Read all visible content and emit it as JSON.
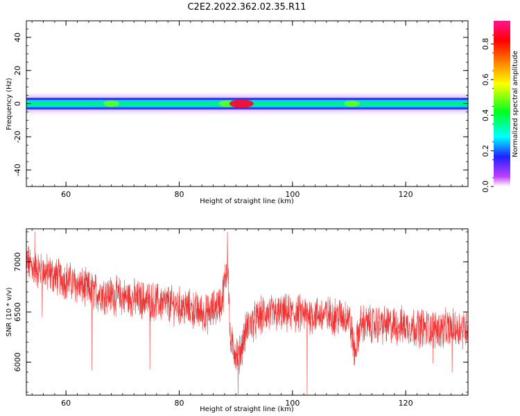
{
  "figure": {
    "title": "C2E2.2022.362.02.35.R11"
  },
  "chart_data": [
    {
      "type": "heatmap",
      "xlabel": "Height of straight line (km)",
      "ylabel": "Frequency (Hz)",
      "xlim": [
        53,
        131
      ],
      "ylim": [
        -50,
        50
      ],
      "xticks": [
        60,
        80,
        100,
        120
      ],
      "yticks": [
        -40,
        -20,
        0,
        20,
        40
      ],
      "grid": false,
      "band_center_hz": 0,
      "band_features": [
        {
          "x": 68,
          "amplitude": 0.45
        },
        {
          "x": 88.5,
          "amplitude": 0.55
        },
        {
          "x": 91,
          "amplitude": 0.95
        },
        {
          "x": 110.5,
          "amplitude": 0.45
        }
      ],
      "colorbar": {
        "label": "Normalized spectral amplitude",
        "range": [
          0,
          0.93
        ],
        "ticks": [
          0.0,
          0.2,
          0.4,
          0.6,
          0.8
        ],
        "colormap": "gist_rainbow"
      }
    },
    {
      "type": "line",
      "xlabel": "Height of straight line (km)",
      "ylabel": "SNR (10 * v/v)",
      "xlim": [
        53,
        131
      ],
      "ylim": [
        5670,
        7330
      ],
      "xticks": [
        60,
        80,
        100,
        120
      ],
      "yticks": [
        6000,
        6500,
        7000
      ],
      "grid": false,
      "color": "#f03232",
      "trend": [
        {
          "x": 53,
          "y": 7000
        },
        {
          "x": 55,
          "y": 6920
        },
        {
          "x": 60,
          "y": 6820
        },
        {
          "x": 65,
          "y": 6700
        },
        {
          "x": 70,
          "y": 6650
        },
        {
          "x": 75,
          "y": 6610
        },
        {
          "x": 80,
          "y": 6560
        },
        {
          "x": 85,
          "y": 6480
        },
        {
          "x": 87.5,
          "y": 6600
        },
        {
          "x": 88.6,
          "y": 7000
        },
        {
          "x": 89,
          "y": 6200
        },
        {
          "x": 90.5,
          "y": 6050
        },
        {
          "x": 92,
          "y": 6350
        },
        {
          "x": 95,
          "y": 6480
        },
        {
          "x": 100,
          "y": 6480
        },
        {
          "x": 105,
          "y": 6470
        },
        {
          "x": 110,
          "y": 6450
        },
        {
          "x": 111,
          "y": 6100
        },
        {
          "x": 112,
          "y": 6380
        },
        {
          "x": 120,
          "y": 6360
        },
        {
          "x": 125,
          "y": 6330
        },
        {
          "x": 131,
          "y": 6340
        }
      ],
      "spikes": [
        {
          "x": 54.5,
          "y": 7300
        },
        {
          "x": 55.8,
          "y": 6450
        },
        {
          "x": 64.6,
          "y": 5920
        },
        {
          "x": 74.8,
          "y": 5930
        },
        {
          "x": 88.5,
          "y": 7300
        },
        {
          "x": 90.4,
          "y": 5680
        },
        {
          "x": 102.6,
          "y": 5670
        },
        {
          "x": 110.9,
          "y": 5970
        },
        {
          "x": 124.8,
          "y": 5990
        },
        {
          "x": 128.2,
          "y": 5900
        }
      ]
    }
  ]
}
